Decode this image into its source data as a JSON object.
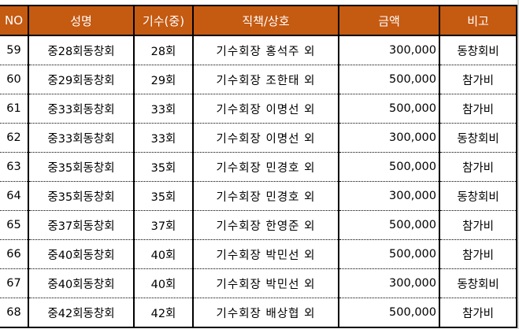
{
  "header": [
    "NO",
    "성명",
    "기수(중)",
    "직책/상호",
    "금액",
    "비고"
  ],
  "rows": [
    {
      "no": "59",
      "name": "중28회동창회",
      "gen": "28회",
      "role": "기수회장  홍석주  외",
      "amount": "300,000",
      "note": "동창회비"
    },
    {
      "no": "60",
      "name": "중29회동창회",
      "gen": "29회",
      "role": "기수회장  조한태  외",
      "amount": "500,000",
      "note": "참가비"
    },
    {
      "no": "61",
      "name": "중33회동창회",
      "gen": "33회",
      "role": "기수회장  이명선  외",
      "amount": "500,000",
      "note": "참가비"
    },
    {
      "no": "62",
      "name": "중33회동창회",
      "gen": "33회",
      "role": "기수회장  이명선  외",
      "amount": "300,000",
      "note": "동창회비"
    },
    {
      "no": "63",
      "name": "중35회동창회",
      "gen": "35회",
      "role": "기수회장  민경호  외",
      "amount": "500,000",
      "note": "참가비"
    },
    {
      "no": "64",
      "name": "중35회동창회",
      "gen": "35회",
      "role": "기수회장  민경호  외",
      "amount": "300,000",
      "note": "동창회비"
    },
    {
      "no": "65",
      "name": "중37회동창회",
      "gen": "37회",
      "role": "기수회장  한영준  외",
      "amount": "500,000",
      "note": "참가비"
    },
    {
      "no": "66",
      "name": "중40회동창회",
      "gen": "40회",
      "role": "기수회장  박민선  외",
      "amount": "500,000",
      "note": "참가비"
    },
    {
      "no": "67",
      "name": "중40회동창회",
      "gen": "40회",
      "role": "기수회장  박민선  외",
      "amount": "300,000",
      "note": "동창회비"
    },
    {
      "no": "68",
      "name": "중42회동창회",
      "gen": "42회",
      "role": "기수회장  배상협  외",
      "amount": "500,000",
      "note": "참가비"
    }
  ],
  "colors": {
    "header_bg": "#c55a11",
    "header_text": "#ffffff"
  }
}
